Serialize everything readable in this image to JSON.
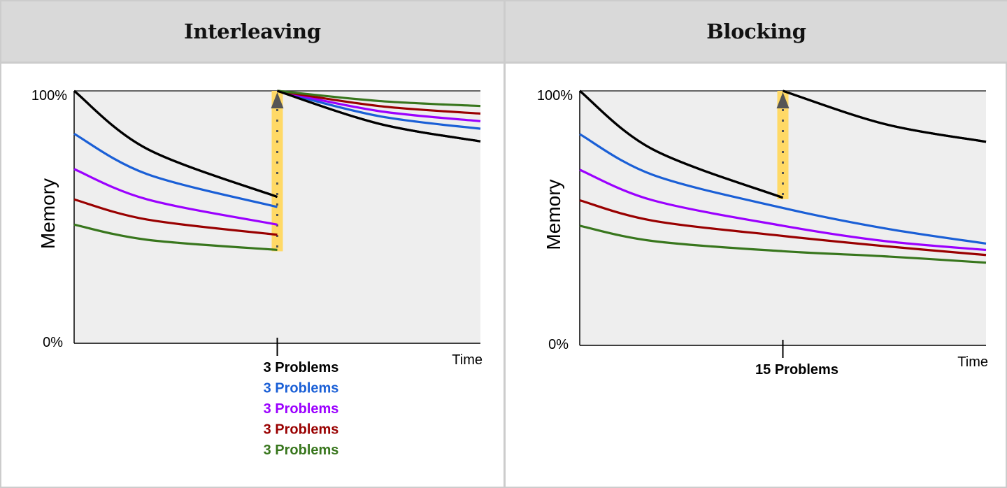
{
  "headers": {
    "left": "Interleaving",
    "right": "Blocking"
  },
  "colors": {
    "black": "#000000",
    "blue": "#1a5fd6",
    "purple": "#9b00ff",
    "red": "#990000",
    "green": "#38761d",
    "plot_bg": "#eeeeee",
    "highlight": "#ffd966",
    "arrow": "#555555"
  },
  "chart_data": [
    {
      "type": "line",
      "title": "Interleaving",
      "xlabel": "Time",
      "ylabel": "Memory",
      "ytick_labels": [
        "0%",
        "100%"
      ],
      "ylim": [
        0,
        100
      ],
      "xlim": [
        0,
        1
      ],
      "review_event": {
        "x": 0.5,
        "labels": [
          {
            "text": "3 Problems",
            "color": "black"
          },
          {
            "text": "3 Problems",
            "color": "blue"
          },
          {
            "text": "3 Problems",
            "color": "purple"
          },
          {
            "text": "3 Problems",
            "color": "red"
          },
          {
            "text": "3 Problems",
            "color": "green"
          }
        ]
      },
      "series": [
        {
          "name": "black",
          "segments": [
            {
              "x": [
                0,
                0.18,
                0.5
              ],
              "y": [
                100,
                77,
                58
              ]
            },
            {
              "x": [
                0.5,
                0.75,
                1
              ],
              "y": [
                100,
                87,
                80
              ]
            }
          ]
        },
        {
          "name": "blue",
          "segments": [
            {
              "x": [
                0,
                0.18,
                0.5
              ],
              "y": [
                83,
                67,
                54
              ]
            },
            {
              "x": [
                0.5,
                0.75,
                1
              ],
              "y": [
                100,
                90,
                85
              ]
            }
          ]
        },
        {
          "name": "purple",
          "segments": [
            {
              "x": [
                0,
                0.18,
                0.5
              ],
              "y": [
                69,
                57,
                47
              ]
            },
            {
              "x": [
                0.5,
                0.75,
                1
              ],
              "y": [
                100,
                92,
                88
              ]
            }
          ]
        },
        {
          "name": "red",
          "segments": [
            {
              "x": [
                0,
                0.18,
                0.5
              ],
              "y": [
                57,
                49,
                43
              ]
            },
            {
              "x": [
                0.5,
                0.75,
                1
              ],
              "y": [
                100,
                94,
                91
              ]
            }
          ]
        },
        {
          "name": "green",
          "segments": [
            {
              "x": [
                0,
                0.18,
                0.5
              ],
              "y": [
                47,
                41,
                37
              ]
            },
            {
              "x": [
                0.5,
                0.75,
                1
              ],
              "y": [
                100,
                96,
                94
              ]
            }
          ]
        }
      ]
    },
    {
      "type": "line",
      "title": "Blocking",
      "xlabel": "Time",
      "ylabel": "Memory",
      "ytick_labels": [
        "0%",
        "100%"
      ],
      "ylim": [
        0,
        100
      ],
      "xlim": [
        0,
        1
      ],
      "review_event": {
        "x": 0.5,
        "labels": [
          {
            "text": "15 Problems",
            "color": "black"
          }
        ]
      },
      "series": [
        {
          "name": "black",
          "segments": [
            {
              "x": [
                0,
                0.18,
                0.5
              ],
              "y": [
                100,
                77,
                58
              ]
            },
            {
              "x": [
                0.5,
                0.75,
                1
              ],
              "y": [
                100,
                87,
                80
              ]
            }
          ]
        },
        {
          "name": "blue",
          "segments": [
            {
              "x": [
                0,
                0.18,
                0.5,
                0.75,
                1
              ],
              "y": [
                83,
                67,
                54,
                46,
                40
              ]
            }
          ]
        },
        {
          "name": "purple",
          "segments": [
            {
              "x": [
                0,
                0.18,
                0.5,
                0.75,
                1
              ],
              "y": [
                69,
                57,
                47,
                41,
                37.5
              ]
            }
          ]
        },
        {
          "name": "red",
          "segments": [
            {
              "x": [
                0,
                0.18,
                0.5,
                0.75,
                1
              ],
              "y": [
                57,
                49,
                43,
                39,
                35.5
              ]
            }
          ]
        },
        {
          "name": "green",
          "segments": [
            {
              "x": [
                0,
                0.18,
                0.5,
                0.75,
                1
              ],
              "y": [
                47,
                41,
                37,
                35,
                32.5
              ]
            }
          ]
        }
      ]
    }
  ]
}
